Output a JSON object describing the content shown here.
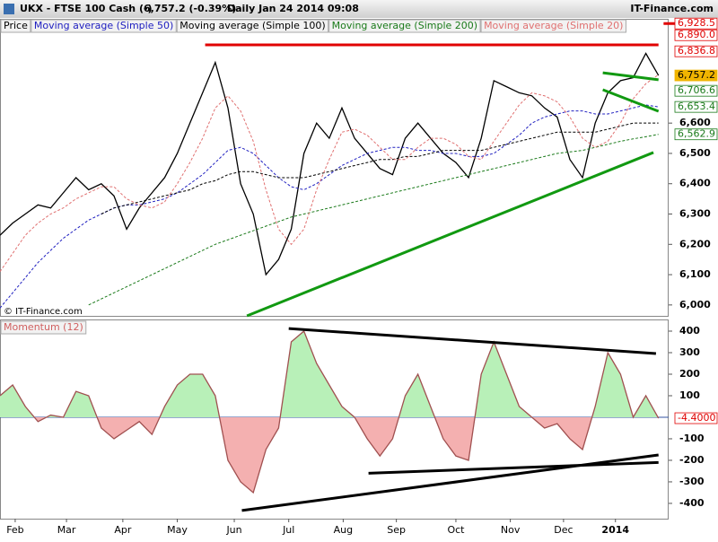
{
  "header": {
    "symbol": "UKX - FTSE 100 Cash (-)",
    "change": "6,757.2 (-0.39%)",
    "period": "Daily  Jan 24 2014 09:08",
    "site": "IT-Finance.com",
    "copyright": "© IT-Finance.com"
  },
  "chart_data": [
    {
      "type": "line",
      "title": "Price",
      "x": [
        0,
        1,
        2,
        3,
        4,
        5,
        6,
        7,
        8,
        9,
        10,
        11,
        12,
        13,
        14,
        15,
        16,
        17,
        18,
        19,
        20,
        21,
        22,
        23,
        24,
        25,
        26,
        27,
        28,
        29,
        30,
        31,
        32,
        33,
        34,
        35,
        36,
        37,
        38,
        39,
        40,
        41,
        42,
        43,
        44,
        45,
        46,
        47,
        48,
        49,
        50,
        51,
        52
      ],
      "xlim": [
        0,
        52.8
      ],
      "ylim": [
        5964,
        6941
      ],
      "yticks": [
        {
          "value": 6000,
          "label": "6,000"
        },
        {
          "value": 6100,
          "label": "6,100"
        },
        {
          "value": 6200,
          "label": "6,200"
        },
        {
          "value": 6300,
          "label": "6,300"
        },
        {
          "value": 6400,
          "label": "6,400"
        },
        {
          "value": 6500,
          "label": "6,500"
        },
        {
          "value": 6600,
          "label": "6,600"
        }
      ],
      "series": [
        {
          "name": "Price",
          "color": "#000000",
          "dashed": false,
          "values": [
            6230,
            6270,
            6300,
            6330,
            6320,
            6370,
            6420,
            6380,
            6400,
            6360,
            6250,
            6320,
            6370,
            6420,
            6500,
            6600,
            6700,
            6800,
            6650,
            6400,
            6300,
            6100,
            6150,
            6250,
            6500,
            6600,
            6550,
            6650,
            6550,
            6500,
            6450,
            6430,
            6550,
            6600,
            6550,
            6500,
            6470,
            6420,
            6550,
            6740,
            6720,
            6700,
            6690,
            6650,
            6620,
            6480,
            6420,
            6600,
            6700,
            6740,
            6750,
            6830,
            6757.2
          ]
        },
        {
          "name": "Moving average (Simple 50)",
          "color": "#2020c0",
          "dashed": true,
          "values": [
            5990,
            6040,
            6090,
            6140,
            6180,
            6220,
            6250,
            6280,
            6300,
            6320,
            6330,
            6330,
            6340,
            6350,
            6370,
            6400,
            6430,
            6470,
            6510,
            6520,
            6500,
            6460,
            6420,
            6390,
            6380,
            6400,
            6430,
            6460,
            6480,
            6500,
            6510,
            6520,
            6520,
            6510,
            6510,
            6500,
            6500,
            6490,
            6490,
            6500,
            6530,
            6560,
            6600,
            6620,
            6630,
            6640,
            6640,
            6630,
            6630,
            6640,
            6650,
            6660,
            6653.4
          ]
        },
        {
          "name": "Moving average (Simple 100)",
          "color": "#000000",
          "dashed": true,
          "values": [
            null,
            null,
            null,
            null,
            null,
            null,
            null,
            null,
            6300,
            6320,
            6330,
            6340,
            6350,
            6360,
            6370,
            6380,
            6400,
            6410,
            6430,
            6440,
            6440,
            6430,
            6420,
            6420,
            6420,
            6430,
            6440,
            6450,
            6460,
            6470,
            6480,
            6480,
            6490,
            6490,
            6500,
            6510,
            6510,
            6510,
            6510,
            6520,
            6530,
            6540,
            6550,
            6560,
            6570,
            6570,
            6570,
            6570,
            6580,
            6590,
            6600,
            6600,
            6600
          ]
        },
        {
          "name": "Moving average (Simple 200)",
          "color": "#1a7a1a",
          "dashed": true,
          "values": [
            null,
            null,
            null,
            null,
            null,
            null,
            null,
            6000,
            6020,
            6040,
            6060,
            6080,
            6100,
            6120,
            6140,
            6160,
            6180,
            6200,
            6215,
            6230,
            6245,
            6260,
            6275,
            6290,
            6300,
            6310,
            6320,
            6330,
            6340,
            6350,
            6360,
            6370,
            6380,
            6390,
            6400,
            6410,
            6420,
            6430,
            6440,
            6450,
            6460,
            6470,
            6480,
            6490,
            6500,
            6505,
            6510,
            6520,
            6530,
            6540,
            6548,
            6555,
            6562.9
          ]
        },
        {
          "name": "Moving average (Simple 20)",
          "color": "#e07070",
          "dashed": true,
          "values": [
            6110,
            6170,
            6230,
            6270,
            6300,
            6320,
            6350,
            6370,
            6390,
            6390,
            6350,
            6330,
            6320,
            6340,
            6400,
            6470,
            6550,
            6650,
            6690,
            6640,
            6540,
            6380,
            6250,
            6200,
            6250,
            6380,
            6480,
            6570,
            6580,
            6560,
            6520,
            6480,
            6480,
            6520,
            6550,
            6550,
            6530,
            6490,
            6480,
            6540,
            6600,
            6660,
            6700,
            6690,
            6670,
            6620,
            6550,
            6520,
            6540,
            6600,
            6680,
            6730,
            6760
          ]
        }
      ],
      "trendlines": [
        {
          "color": "#e00000",
          "points": [
            [
              16.2,
              6858
            ],
            [
              52,
              6858
            ]
          ]
        },
        {
          "color": "#e00000",
          "points": [
            [
              52.4,
              6928.5
            ],
            [
              54.5,
              6928.5
            ]
          ]
        },
        {
          "color": "#119911",
          "points": [
            [
              19.5,
              5964
            ],
            [
              51.6,
              6503
            ]
          ]
        },
        {
          "color": "#119911",
          "points": [
            [
              47.6,
              6766
            ],
            [
              52,
              6743
            ]
          ]
        },
        {
          "color": "#119911",
          "points": [
            [
              47.6,
              6710
            ],
            [
              52,
              6639
            ]
          ]
        }
      ],
      "markers": [
        {
          "value": 6928.5,
          "label": "6,928.5",
          "color": "#e00000"
        },
        {
          "value": 6890,
          "label": "6,890.0",
          "color": "#e00000"
        },
        {
          "value": 6836.8,
          "label": "6,836.8",
          "color": "#e00000"
        },
        {
          "value": 6757.2,
          "label": "6,757.2",
          "color": "#000000",
          "background": "#f0b400"
        },
        {
          "value": 6706.6,
          "label": "6,706.6",
          "color": "#1a7a1a"
        },
        {
          "value": 6653.4,
          "label": "6,653.4",
          "color": "#1a7a1a"
        },
        {
          "value": 6562.9,
          "label": "6,562.9",
          "color": "#1a7a1a"
        }
      ]
    },
    {
      "type": "area",
      "title": "Momentum (12)",
      "x": [
        0,
        1,
        2,
        3,
        4,
        5,
        6,
        7,
        8,
        9,
        10,
        11,
        12,
        13,
        14,
        15,
        16,
        17,
        18,
        19,
        20,
        21,
        22,
        23,
        24,
        25,
        26,
        27,
        28,
        29,
        30,
        31,
        32,
        33,
        34,
        35,
        36,
        37,
        38,
        39,
        40,
        41,
        42,
        43,
        44,
        45,
        46,
        47,
        48,
        49,
        50,
        51,
        52
      ],
      "xlim": [
        0,
        52.8
      ],
      "ylim": [
        -471,
        450
      ],
      "xticks": [
        {
          "value": 1.2,
          "label": "Feb"
        },
        {
          "value": 5.25,
          "label": "Mar"
        },
        {
          "value": 9.7,
          "label": "Apr"
        },
        {
          "value": 14,
          "label": "May"
        },
        {
          "value": 18.5,
          "label": "Jun"
        },
        {
          "value": 22.8,
          "label": "Jul"
        },
        {
          "value": 27.1,
          "label": "Aug"
        },
        {
          "value": 31.3,
          "label": "Sep"
        },
        {
          "value": 36,
          "label": "Oct"
        },
        {
          "value": 40.3,
          "label": "Nov"
        },
        {
          "value": 44.5,
          "label": "Dec"
        },
        {
          "value": 48.6,
          "label": "2014"
        }
      ],
      "yticks": [
        400,
        300,
        200,
        100,
        -100,
        -200,
        -300,
        -400
      ],
      "series": [
        {
          "name": "Momentum (12)",
          "color": "#a05050",
          "positive_color": "#b8f0b8",
          "negative_color": "#f4b0b0",
          "values": [
            100,
            150,
            50,
            -20,
            10,
            0,
            120,
            100,
            -50,
            -100,
            -60,
            -20,
            -80,
            50,
            150,
            200,
            200,
            100,
            -200,
            -300,
            -350,
            -150,
            -50,
            350,
            400,
            250,
            150,
            50,
            0,
            -100,
            -180,
            -100,
            100,
            200,
            50,
            -100,
            -180,
            -200,
            200,
            350,
            200,
            50,
            0,
            -50,
            -30,
            -100,
            -150,
            50,
            300,
            200,
            0,
            100,
            -4.4
          ]
        }
      ],
      "trendlines": [
        {
          "color": "#000000",
          "points": [
            [
              22.8,
              412
            ],
            [
              51.8,
              296
            ]
          ]
        },
        {
          "color": "#000000",
          "points": [
            [
              19.1,
              -433
            ],
            [
              52,
              -175
            ]
          ]
        },
        {
          "color": "#000000",
          "points": [
            [
              29.1,
              -260
            ],
            [
              52,
              -210
            ]
          ]
        }
      ],
      "markers": [
        {
          "value": -4.4,
          "label": "-4.4000",
          "color": "#e00000"
        }
      ]
    }
  ]
}
